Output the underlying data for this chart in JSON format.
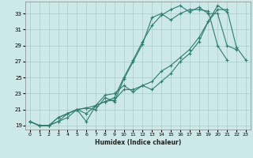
{
  "xlabel": "Humidex (Indice chaleur)",
  "background_color": "#cce8e8",
  "grid_color": "#aacccc",
  "line_color": "#2e7d6e",
  "xlim": [
    -0.5,
    23.5
  ],
  "ylim": [
    18.5,
    34.5
  ],
  "xticks": [
    0,
    1,
    2,
    3,
    4,
    5,
    6,
    7,
    8,
    9,
    10,
    11,
    12,
    13,
    14,
    15,
    16,
    17,
    18,
    19,
    20,
    21,
    22,
    23
  ],
  "yticks": [
    19,
    21,
    23,
    25,
    27,
    29,
    31,
    33
  ],
  "lines": [
    {
      "x": [
        0,
        1,
        2,
        3,
        4,
        5,
        6,
        7,
        8,
        9,
        10,
        11,
        12,
        13,
        14,
        15,
        16,
        17,
        18,
        19,
        20,
        21
      ],
      "y": [
        19.5,
        19.0,
        19.0,
        19.5,
        20.5,
        21.0,
        21.2,
        21.0,
        22.5,
        22.0,
        24.8,
        27.0,
        29.2,
        32.5,
        33.0,
        32.2,
        33.0,
        33.5,
        33.5,
        33.3,
        29.0,
        27.2
      ]
    },
    {
      "x": [
        0,
        1,
        2,
        3,
        4,
        5,
        6,
        7,
        8,
        9,
        10,
        11,
        12,
        13,
        14,
        15,
        16,
        17,
        18,
        19,
        20,
        21,
        22
      ],
      "y": [
        19.5,
        19.0,
        19.0,
        19.5,
        20.0,
        21.0,
        20.5,
        21.5,
        22.0,
        22.5,
        25.0,
        27.2,
        29.5,
        31.5,
        32.8,
        33.5,
        34.0,
        33.2,
        33.8,
        33.0,
        33.0,
        29.0,
        28.5
      ]
    },
    {
      "x": [
        0,
        1,
        2,
        3,
        4,
        5,
        6,
        7,
        8,
        9,
        10,
        11,
        12,
        13,
        14,
        15,
        16,
        17,
        18,
        19,
        20,
        21,
        22,
        23
      ],
      "y": [
        19.5,
        19.0,
        19.0,
        20.0,
        20.5,
        21.0,
        21.2,
        21.5,
        22.8,
        23.0,
        24.0,
        23.2,
        24.0,
        23.5,
        24.5,
        25.5,
        27.0,
        28.0,
        29.5,
        32.0,
        33.5,
        33.5,
        28.8,
        27.2
      ]
    },
    {
      "x": [
        0,
        1,
        2,
        3,
        4,
        5,
        6,
        7,
        8,
        9,
        10,
        11,
        12,
        13,
        14,
        15,
        16,
        17,
        18,
        19,
        20,
        21
      ],
      "y": [
        19.5,
        19.0,
        19.0,
        20.0,
        20.5,
        21.0,
        19.5,
        21.5,
        22.0,
        22.2,
        23.5,
        23.5,
        24.0,
        24.5,
        25.8,
        26.5,
        27.5,
        28.5,
        30.0,
        32.0,
        34.0,
        33.2
      ]
    }
  ]
}
